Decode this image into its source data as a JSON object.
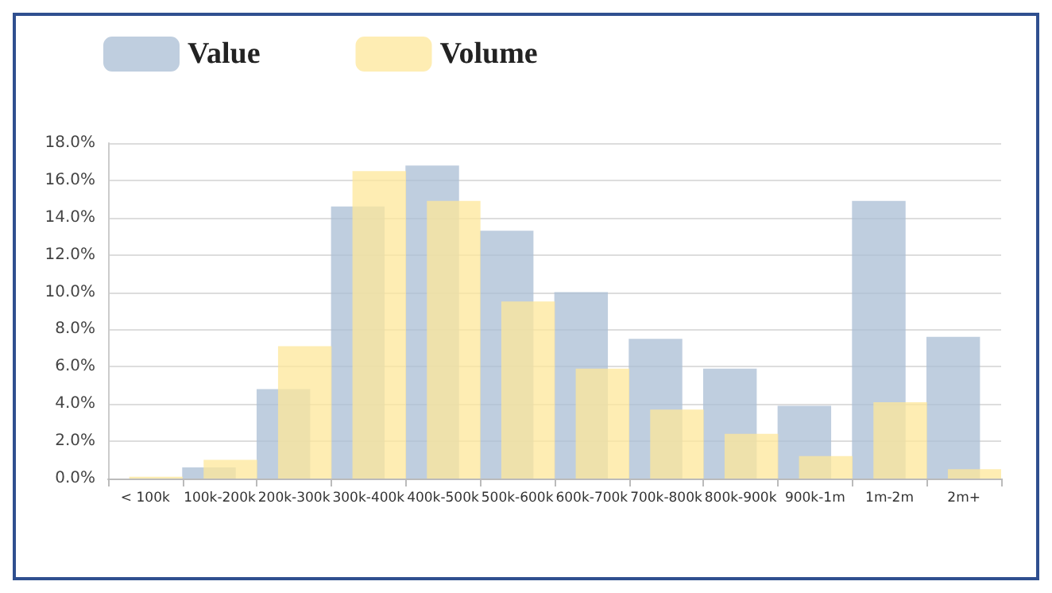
{
  "chart_data": {
    "type": "bar",
    "categories": [
      "< 100k",
      "100k-200k",
      "200k-300k",
      "300k-400k",
      "400k-500k",
      "500k-600k",
      "600k-700k",
      "700k-800k",
      "800k-900k",
      "900k-1m",
      "1m-2m",
      "2m+"
    ],
    "series": [
      {
        "name": "Value",
        "color": "#a9bdd4",
        "values": [
          0,
          0.6,
          4.8,
          14.6,
          16.8,
          13.3,
          10.0,
          7.5,
          5.9,
          3.9,
          14.9,
          7.6
        ]
      },
      {
        "name": "Volume",
        "color": "#fde79a",
        "values": [
          0.1,
          1.0,
          7.1,
          16.5,
          14.9,
          9.5,
          5.9,
          3.7,
          2.4,
          1.2,
          4.1,
          0.5
        ]
      }
    ],
    "ylim": [
      0,
      18
    ],
    "yticks": [
      {
        "value": 0,
        "label": "0.0%"
      },
      {
        "value": 2,
        "label": "2.0%"
      },
      {
        "value": 4,
        "label": "4.0%"
      },
      {
        "value": 6,
        "label": "6.0%"
      },
      {
        "value": 8,
        "label": "8.0%"
      },
      {
        "value": 10,
        "label": "10.0%"
      },
      {
        "value": 12,
        "label": "12.0%"
      },
      {
        "value": 14,
        "label": "14.0%"
      },
      {
        "value": 16,
        "label": "16.0%"
      },
      {
        "value": 18,
        "label": "18.0%"
      }
    ],
    "grid": "y",
    "legend": "top left"
  }
}
